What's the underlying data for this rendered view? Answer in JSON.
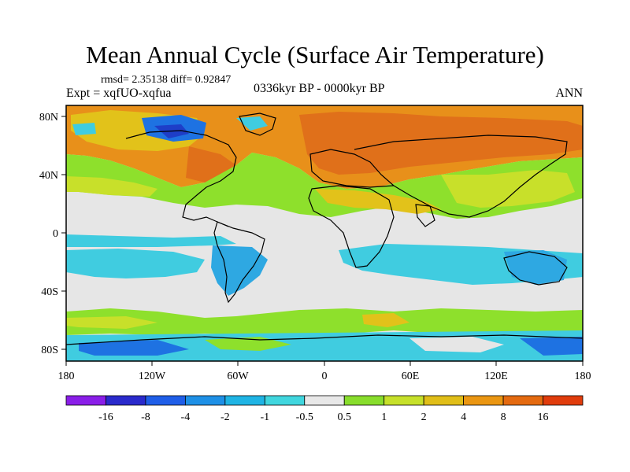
{
  "title": "Mean Annual Cycle (Surface Air Temperature)",
  "stats": "rmsd= 2.35138 diff= 0.92847",
  "experiment": "Expt = xqfUO-xqfua",
  "period": "0336kyr BP - 0000kyr BP",
  "season": "ANN",
  "lat_labels": [
    "80N",
    "40N",
    "0",
    "40S",
    "80S"
  ],
  "lon_labels": [
    "180",
    "120W",
    "60W",
    "0",
    "60E",
    "120E",
    "180"
  ],
  "colorbar": {
    "labels": [
      "-16",
      "-8",
      "-4",
      "-2",
      "-1",
      "-0.5",
      "0.5",
      "1",
      "2",
      "4",
      "8",
      "16"
    ],
    "colors": [
      "#8a1ee8",
      "#2a2acc",
      "#1f5ee8",
      "#1e90e6",
      "#1fb4e4",
      "#40d6de",
      "#e8e8e8",
      "#88dd2c",
      "#c6e02a",
      "#e0be18",
      "#ea9612",
      "#e46a10",
      "#e03c0c"
    ]
  },
  "palette": {
    "ocean_neutral": "#e6e6e6",
    "green": "#8ee02c",
    "yellowgreen": "#c8e02a",
    "yellow": "#e2c21a",
    "orange": "#e8901a",
    "darkorange": "#e0701a",
    "cyan": "#40cce0",
    "lightblue": "#2ea8e2",
    "blue": "#1e72e2",
    "darkblue": "#1e3ec8"
  }
}
